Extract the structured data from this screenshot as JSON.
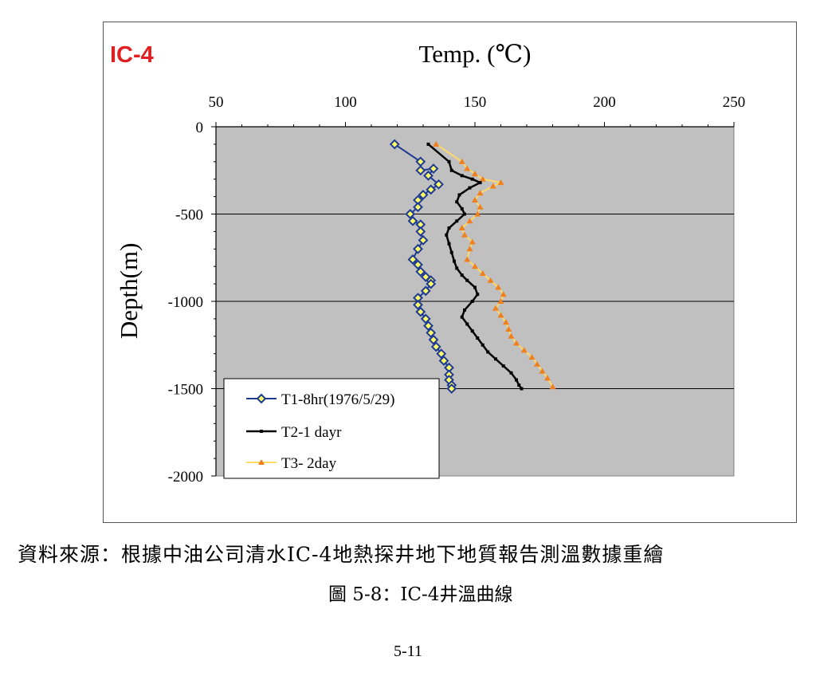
{
  "chart_data": {
    "type": "line",
    "panel_label": "IC-4",
    "title": "Temp. (℃)",
    "xlabel": "Temp. (℃)",
    "ylabel": "Depth(m)",
    "xlim": [
      50,
      250
    ],
    "ylim": [
      -2000,
      0
    ],
    "xticks": [
      50,
      100,
      150,
      200,
      250
    ],
    "yticks": [
      0,
      -500,
      -1000,
      -1500,
      -2000
    ],
    "x_axis_position": "top",
    "grid": "horizontal",
    "legend_position": "bottom-left",
    "colors": {
      "plot_background": "#c0c0c0",
      "t1_line": "#1f3a93",
      "t1_marker": "#ffff66",
      "t2_line": "#000000",
      "t3_line": "#ffd966",
      "t3_marker": "#f07f1e",
      "panel_label": "#e02020"
    },
    "series": [
      {
        "name": "T1-8hr(1976/5/29)",
        "x": [
          119,
          129,
          129,
          134,
          132,
          136,
          133,
          130,
          128,
          128,
          125,
          126,
          129,
          129,
          130,
          128,
          126,
          128,
          129,
          131,
          133,
          133,
          131,
          128,
          128,
          129,
          131,
          132,
          133,
          134,
          135,
          137,
          138,
          140,
          140,
          140,
          141,
          141
        ],
        "y": [
          -100,
          -200,
          -250,
          -240,
          -280,
          -330,
          -360,
          -390,
          -420,
          -460,
          -500,
          -540,
          -560,
          -600,
          -650,
          -700,
          -760,
          -790,
          -830,
          -860,
          -880,
          -900,
          -940,
          -980,
          -1020,
          -1060,
          -1100,
          -1140,
          -1180,
          -1220,
          -1260,
          -1300,
          -1340,
          -1380,
          -1420,
          -1450,
          -1480,
          -1500
        ]
      },
      {
        "name": "T2-1 dayr",
        "x": [
          132,
          140,
          141,
          145,
          149,
          152,
          148,
          144,
          143,
          145,
          146,
          143,
          140,
          139,
          140,
          141,
          142,
          143,
          145,
          147,
          150,
          151,
          149,
          146,
          145,
          147,
          149,
          151,
          153,
          155,
          158,
          161,
          164,
          166,
          167,
          168
        ],
        "y": [
          -100,
          -200,
          -250,
          -280,
          -300,
          -320,
          -350,
          -390,
          -430,
          -470,
          -500,
          -540,
          -580,
          -620,
          -670,
          -720,
          -770,
          -810,
          -850,
          -880,
          -920,
          -960,
          -1000,
          -1050,
          -1090,
          -1130,
          -1170,
          -1210,
          -1250,
          -1290,
          -1330,
          -1370,
          -1410,
          -1450,
          -1480,
          -1500
        ]
      },
      {
        "name": "T3- 2day",
        "x": [
          135,
          145,
          147,
          150,
          153,
          160,
          157,
          152,
          150,
          152,
          151,
          148,
          145,
          146,
          149,
          148,
          147,
          150,
          153,
          156,
          159,
          161,
          160,
          158,
          160,
          162,
          163,
          164,
          166,
          169,
          172,
          174,
          176,
          178,
          180
        ],
        "y": [
          -100,
          -200,
          -240,
          -270,
          -300,
          -320,
          -340,
          -380,
          -420,
          -460,
          -500,
          -540,
          -580,
          -620,
          -660,
          -700,
          -760,
          -800,
          -840,
          -880,
          -920,
          -960,
          -1000,
          -1040,
          -1080,
          -1120,
          -1160,
          -1200,
          -1240,
          -1280,
          -1320,
          -1360,
          -1400,
          -1440,
          -1490
        ]
      }
    ]
  },
  "captions": {
    "source_note": "資料來源：根據中油公司清水IC-4地熱探井地下地質報告測溫數據重繪",
    "figure_caption": "圖  5-8：IC-4井溫曲線",
    "page_number": "5-11"
  }
}
